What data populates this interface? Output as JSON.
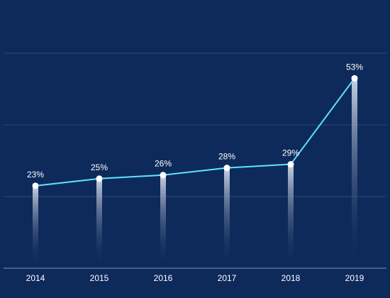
{
  "chart_data": {
    "type": "line",
    "categories": [
      "2014",
      "2015",
      "2016",
      "2017",
      "2018",
      "2019"
    ],
    "values": [
      23,
      25,
      26,
      28,
      29,
      53
    ],
    "value_labels": [
      "23%",
      "25%",
      "26%",
      "28%",
      "29%",
      "53%"
    ],
    "unit": "%",
    "ylim": [
      0,
      60
    ],
    "grid": true,
    "legend": "none",
    "title": "",
    "xlabel": "",
    "ylabel": "",
    "colors": {
      "background": "#0e2a5b",
      "line": "#5fe3ff",
      "point": "#ffffff",
      "text": "#ffffff",
      "gridline": "#2c4677",
      "axis": "#7f95bd",
      "bar_top": "#c9d3e6"
    }
  }
}
